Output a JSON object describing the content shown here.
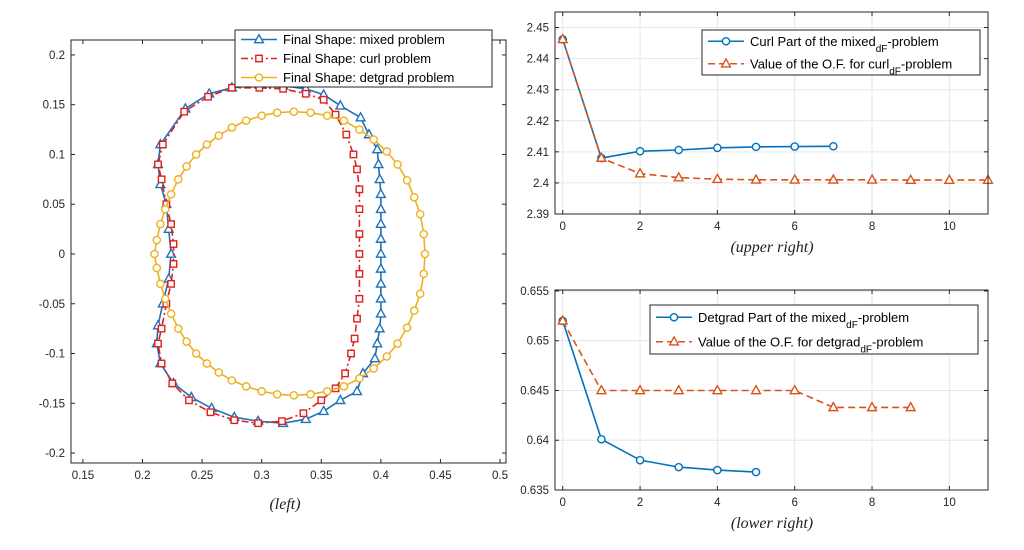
{
  "captions": {
    "left": "(left)",
    "upper_right": "(upper right)",
    "lower_right": "(lower right)"
  },
  "colors": {
    "mixed": "#1f72b8",
    "curl_left": "#e0201b",
    "detgrad": "#edb120",
    "blue": "#0072bd",
    "orange": "#d95319"
  },
  "chart_data": [
    {
      "id": "left",
      "type": "scatter",
      "xlim": [
        0.14,
        0.505
      ],
      "ylim": [
        -0.21,
        0.215
      ],
      "xticks": [
        0.15,
        0.2,
        0.25,
        0.3,
        0.35,
        0.4,
        0.45,
        0.5
      ],
      "yticks": [
        -0.2,
        -0.15,
        -0.1,
        -0.05,
        0,
        0.05,
        0.1,
        0.15,
        0.2
      ],
      "xtick_labels": [
        "0.15",
        "0.2",
        "0.25",
        "0.3",
        "0.35",
        "0.4",
        "0.45",
        "0.5"
      ],
      "ytick_labels": [
        "-0.2",
        "-0.15",
        "-0.1",
        "-0.05",
        "0",
        "0.05",
        "0.1",
        "0.15",
        "0.2"
      ],
      "grid": false,
      "legend": "top-right",
      "series": [
        {
          "name": "Final Shape: mixed problem",
          "color": "#1f72b8",
          "marker": "triangle",
          "line": "solid",
          "points": [
            [
              0.215,
              0.11
            ],
            [
              0.236,
              0.146
            ],
            [
              0.256,
              0.161
            ],
            [
              0.275,
              0.167
            ],
            [
              0.3,
              0.17
            ],
            [
              0.318,
              0.169
            ],
            [
              0.337,
              0.166
            ],
            [
              0.352,
              0.16
            ],
            [
              0.366,
              0.149
            ],
            [
              0.383,
              0.137
            ],
            [
              0.39,
              0.12
            ],
            [
              0.397,
              0.105
            ],
            [
              0.398,
              0.09
            ],
            [
              0.399,
              0.075
            ],
            [
              0.4,
              0.06
            ],
            [
              0.4,
              0.045
            ],
            [
              0.4,
              0.03
            ],
            [
              0.4,
              0.015
            ],
            [
              0.4,
              0.0
            ],
            [
              0.4,
              -0.015
            ],
            [
              0.4,
              -0.03
            ],
            [
              0.4,
              -0.045
            ],
            [
              0.4,
              -0.06
            ],
            [
              0.399,
              -0.075
            ],
            [
              0.397,
              -0.09
            ],
            [
              0.395,
              -0.105
            ],
            [
              0.385,
              -0.12
            ],
            [
              0.38,
              -0.138
            ],
            [
              0.366,
              -0.147
            ],
            [
              0.352,
              -0.158
            ],
            [
              0.337,
              -0.166
            ],
            [
              0.318,
              -0.17
            ],
            [
              0.297,
              -0.168
            ],
            [
              0.277,
              -0.164
            ],
            [
              0.258,
              -0.155
            ],
            [
              0.241,
              -0.144
            ],
            [
              0.226,
              -0.13
            ],
            [
              0.215,
              -0.11
            ],
            [
              0.212,
              -0.09
            ],
            [
              0.213,
              -0.072
            ],
            [
              0.217,
              -0.05
            ],
            [
              0.222,
              -0.025
            ],
            [
              0.224,
              0.0
            ],
            [
              0.222,
              0.025
            ],
            [
              0.22,
              0.05
            ],
            [
              0.215,
              0.07
            ],
            [
              0.213,
              0.09
            ]
          ]
        },
        {
          "name": "Final Shape: curl problem",
          "color": "#e0201b",
          "marker": "square",
          "line": "dashdot",
          "points": [
            [
              0.217,
              0.11
            ],
            [
              0.235,
              0.143
            ],
            [
              0.255,
              0.158
            ],
            [
              0.275,
              0.167
            ],
            [
              0.298,
              0.167
            ],
            [
              0.318,
              0.166
            ],
            [
              0.337,
              0.161
            ],
            [
              0.352,
              0.155
            ],
            [
              0.362,
              0.14
            ],
            [
              0.371,
              0.12
            ],
            [
              0.377,
              0.1
            ],
            [
              0.38,
              0.085
            ],
            [
              0.382,
              0.065
            ],
            [
              0.382,
              0.045
            ],
            [
              0.382,
              0.02
            ],
            [
              0.382,
              0.0
            ],
            [
              0.382,
              -0.02
            ],
            [
              0.382,
              -0.045
            ],
            [
              0.38,
              -0.065
            ],
            [
              0.378,
              -0.085
            ],
            [
              0.375,
              -0.1
            ],
            [
              0.37,
              -0.12
            ],
            [
              0.362,
              -0.135
            ],
            [
              0.35,
              -0.147
            ],
            [
              0.335,
              -0.16
            ],
            [
              0.317,
              -0.168
            ],
            [
              0.297,
              -0.17
            ],
            [
              0.277,
              -0.167
            ],
            [
              0.257,
              -0.159
            ],
            [
              0.239,
              -0.147
            ],
            [
              0.225,
              -0.13
            ],
            [
              0.216,
              -0.11
            ],
            [
              0.213,
              -0.09
            ],
            [
              0.216,
              -0.075
            ],
            [
              0.22,
              -0.05
            ],
            [
              0.224,
              -0.03
            ],
            [
              0.226,
              -0.01
            ],
            [
              0.226,
              0.01
            ],
            [
              0.224,
              0.03
            ],
            [
              0.22,
              0.05
            ],
            [
              0.216,
              0.075
            ],
            [
              0.213,
              0.09
            ]
          ]
        },
        {
          "name": "Final Shape: detgrad problem",
          "color": "#edb120",
          "marker": "circle",
          "line": "solid",
          "points": [
            [
              0.21,
              0.0
            ],
            [
              0.212,
              -0.014
            ],
            [
              0.215,
              -0.03
            ],
            [
              0.219,
              -0.045
            ],
            [
              0.224,
              -0.06
            ],
            [
              0.23,
              -0.075
            ],
            [
              0.237,
              -0.088
            ],
            [
              0.245,
              -0.1
            ],
            [
              0.254,
              -0.11
            ],
            [
              0.264,
              -0.119
            ],
            [
              0.275,
              -0.127
            ],
            [
              0.287,
              -0.133
            ],
            [
              0.3,
              -0.138
            ],
            [
              0.313,
              -0.141
            ],
            [
              0.327,
              -0.142
            ],
            [
              0.341,
              -0.141
            ],
            [
              0.355,
              -0.138
            ],
            [
              0.369,
              -0.133
            ],
            [
              0.382,
              -0.125
            ],
            [
              0.394,
              -0.115
            ],
            [
              0.405,
              -0.103
            ],
            [
              0.414,
              -0.09
            ],
            [
              0.422,
              -0.074
            ],
            [
              0.428,
              -0.057
            ],
            [
              0.433,
              -0.04
            ],
            [
              0.436,
              -0.02
            ],
            [
              0.437,
              0.0
            ],
            [
              0.436,
              0.02
            ],
            [
              0.433,
              0.04
            ],
            [
              0.428,
              0.057
            ],
            [
              0.422,
              0.074
            ],
            [
              0.414,
              0.09
            ],
            [
              0.405,
              0.103
            ],
            [
              0.394,
              0.115
            ],
            [
              0.382,
              0.125
            ],
            [
              0.369,
              0.134
            ],
            [
              0.355,
              0.139
            ],
            [
              0.341,
              0.142
            ],
            [
              0.327,
              0.143
            ],
            [
              0.313,
              0.142
            ],
            [
              0.3,
              0.139
            ],
            [
              0.287,
              0.134
            ],
            [
              0.275,
              0.127
            ],
            [
              0.264,
              0.119
            ],
            [
              0.254,
              0.11
            ],
            [
              0.245,
              0.1
            ],
            [
              0.237,
              0.088
            ],
            [
              0.23,
              0.075
            ],
            [
              0.224,
              0.06
            ],
            [
              0.219,
              0.045
            ],
            [
              0.215,
              0.03
            ],
            [
              0.212,
              0.014
            ]
          ]
        }
      ]
    },
    {
      "id": "upper_right",
      "type": "line",
      "xlim": [
        -0.2,
        11
      ],
      "ylim": [
        2.39,
        2.455
      ],
      "xticks": [
        0,
        2,
        4,
        6,
        8,
        10
      ],
      "yticks": [
        2.39,
        2.4,
        2.41,
        2.42,
        2.43,
        2.44,
        2.45
      ],
      "xtick_labels": [
        "0",
        "2",
        "4",
        "6",
        "8",
        "10"
      ],
      "ytick_labels": [
        "2.39",
        "2.4",
        "2.41",
        "2.42",
        "2.43",
        "2.44",
        "2.45"
      ],
      "grid": true,
      "legend": "top-right",
      "series": [
        {
          "name_pre": "Curl Part of the mixed",
          "name_sub": "dF",
          "name_post": "-problem",
          "color": "#0072bd",
          "marker": "circle",
          "line": "solid",
          "x": [
            0,
            1,
            2,
            3,
            4,
            5,
            6,
            7
          ],
          "values": [
            2.4462,
            2.408,
            2.4102,
            2.4106,
            2.4113,
            2.4116,
            2.4117,
            2.4118
          ]
        },
        {
          "name_pre": "Value of the O.F. for curl",
          "name_sub": "dF",
          "name_post": "-problem",
          "color": "#d95319",
          "marker": "triangle",
          "line": "dashed",
          "x": [
            0,
            1,
            2,
            3,
            4,
            5,
            6,
            7,
            8,
            9,
            10,
            11
          ],
          "values": [
            2.4462,
            2.408,
            2.403,
            2.4017,
            2.4012,
            2.401,
            2.401,
            2.401,
            2.401,
            2.4009,
            2.4009,
            2.4009
          ]
        }
      ]
    },
    {
      "id": "lower_right",
      "type": "line",
      "xlim": [
        -0.2,
        11
      ],
      "ylim": [
        0.635,
        0.6551
      ],
      "xticks": [
        0,
        2,
        4,
        6,
        8,
        10
      ],
      "yticks": [
        0.635,
        0.64,
        0.645,
        0.65,
        0.655
      ],
      "xtick_labels": [
        "0",
        "2",
        "4",
        "6",
        "8",
        "10"
      ],
      "ytick_labels": [
        "0.635",
        "0.64",
        "0.645",
        "0.65",
        "0.655"
      ],
      "grid": true,
      "legend": "top-right",
      "series": [
        {
          "name_pre": "Detgrad Part of the mixed",
          "name_sub": "dF",
          "name_post": "-problem",
          "color": "#0072bd",
          "marker": "circle",
          "line": "solid",
          "x": [
            0,
            1,
            2,
            3,
            4,
            5
          ],
          "values": [
            0.652,
            0.6401,
            0.638,
            0.6373,
            0.637,
            0.6368
          ]
        },
        {
          "name_pre": "Value of the O.F. for detgrad",
          "name_sub": "dF",
          "name_post": "-problem",
          "color": "#d95319",
          "marker": "triangle",
          "line": "dashed",
          "x": [
            0,
            1,
            2,
            3,
            4,
            5,
            6,
            7,
            8,
            9
          ],
          "values": [
            0.652,
            0.645,
            0.645,
            0.645,
            0.645,
            0.645,
            0.645,
            0.6433,
            0.6433,
            0.6433
          ]
        }
      ]
    }
  ]
}
